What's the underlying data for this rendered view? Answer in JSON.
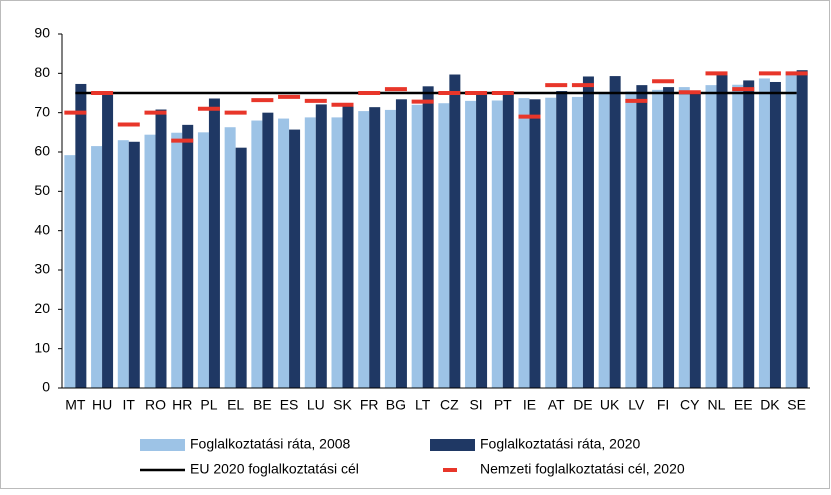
{
  "chart_data": {
    "type": "bar",
    "categories": [
      "MT",
      "HU",
      "IT",
      "RO",
      "HR",
      "PL",
      "EL",
      "BE",
      "ES",
      "LU",
      "SK",
      "FR",
      "BG",
      "LT",
      "CZ",
      "SI",
      "PT",
      "IE",
      "AT",
      "DE",
      "UK",
      "LV",
      "FI",
      "CY",
      "NL",
      "EE",
      "DK",
      "SE"
    ],
    "series": [
      {
        "name": "Foglalkoztatási ráta, 2008",
        "color": "#9dc3e6",
        "values": [
          59.2,
          61.5,
          63.0,
          64.4,
          64.9,
          65.0,
          66.3,
          68.0,
          68.5,
          68.8,
          68.8,
          70.4,
          70.7,
          72.0,
          72.4,
          73.0,
          73.1,
          73.7,
          73.8,
          74.0,
          75.2,
          75.4,
          75.8,
          76.5,
          77.0,
          77.1,
          78.7,
          80.4
        ]
      },
      {
        "name": "Foglalkoztatási ráta, 2020",
        "color": "#1f3864",
        "values": [
          77.3,
          75.0,
          62.6,
          70.8,
          66.9,
          73.6,
          61.1,
          70.0,
          65.7,
          72.1,
          71.9,
          71.4,
          73.4,
          76.7,
          79.7,
          74.6,
          74.7,
          73.4,
          75.5,
          79.2,
          79.3,
          77.0,
          76.5,
          74.9,
          80.0,
          78.2,
          77.8,
          80.8
        ]
      }
    ],
    "reference_line": {
      "name": "EU 2020 foglalkoztatási cél",
      "value": 75,
      "color": "#000000"
    },
    "targets": {
      "name": "Nemzeti foglalkoztatási cél, 2020",
      "color": "#e8362a",
      "values": [
        70,
        75,
        67,
        70,
        62.9,
        71,
        70,
        73.2,
        74,
        73,
        72,
        75,
        76,
        72.8,
        75,
        75,
        75,
        69,
        77,
        77,
        null,
        73,
        78,
        75.2,
        80,
        76,
        80,
        80
      ]
    },
    "ylim": [
      0,
      90
    ],
    "yticks": [
      0,
      10,
      20,
      30,
      40,
      50,
      60,
      70,
      80,
      90
    ],
    "grid": false
  }
}
